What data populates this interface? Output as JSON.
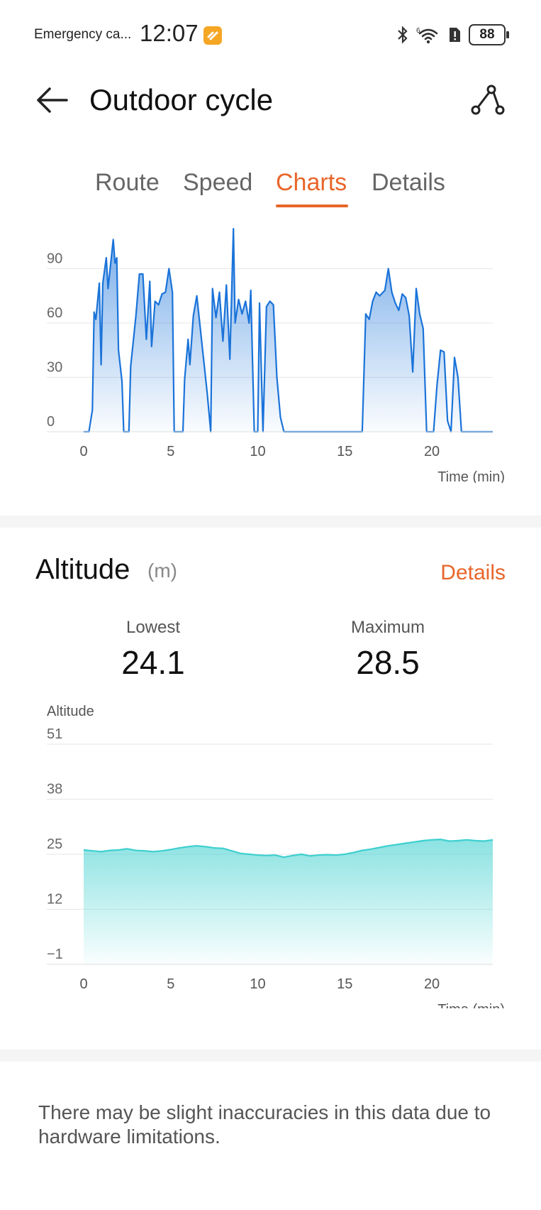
{
  "status_bar": {
    "carrier": "Emergency ca...",
    "time": "12:07",
    "battery": "88"
  },
  "header": {
    "title": "Outdoor cycle"
  },
  "tabs": [
    {
      "label": "Route",
      "active": false
    },
    {
      "label": "Speed",
      "active": false
    },
    {
      "label": "Charts",
      "active": true
    },
    {
      "label": "Details",
      "active": false
    }
  ],
  "altitude_section": {
    "title": "Altitude",
    "unit": "(m)",
    "details_label": "Details",
    "lowest_label": "Lowest",
    "lowest_value": "24.1",
    "maximum_label": "Maximum",
    "maximum_value": "28.5"
  },
  "footnote": "There may be slight inaccuracies in this data due to hardware limitations.",
  "colors": {
    "accent": "#e8652a",
    "chart1_line": "#1a73d9",
    "chart2_line": "#3ecfcf"
  },
  "chart_data": [
    {
      "type": "area",
      "title": "",
      "xlabel": "Time (min)",
      "ylabel": "",
      "xlim": [
        0,
        23.5
      ],
      "ylim": [
        0,
        105
      ],
      "x_ticks": [
        0,
        5,
        10,
        15,
        20
      ],
      "y_ticks": [
        0,
        30,
        60,
        90
      ],
      "grid": true,
      "x": [
        0,
        0.3,
        0.5,
        0.6,
        0.7,
        0.9,
        1.0,
        1.1,
        1.3,
        1.4,
        1.5,
        1.7,
        1.8,
        1.9,
        2.0,
        2.2,
        2.3,
        2.4,
        2.6,
        2.7,
        3.0,
        3.2,
        3.4,
        3.6,
        3.8,
        3.9,
        4.1,
        4.3,
        4.5,
        4.7,
        4.9,
        5.1,
        5.2,
        5.4,
        5.5,
        5.7,
        5.8,
        6.0,
        6.1,
        6.3,
        6.5,
        7.1,
        7.3,
        7.4,
        7.6,
        7.8,
        8.0,
        8.2,
        8.4,
        8.6,
        8.7,
        8.9,
        9.1,
        9.3,
        9.5,
        9.6,
        9.8,
        10.0,
        10.1,
        10.3,
        10.5,
        10.7,
        10.9,
        11.1,
        11.3,
        11.5,
        11.7,
        11.9,
        12.1,
        12.3,
        12.5,
        12.7,
        12.9,
        13.1,
        13.3,
        13.5,
        13.7,
        13.9,
        14.3,
        16.0,
        16.2,
        16.4,
        16.6,
        16.8,
        17.0,
        17.3,
        17.5,
        17.7,
        17.9,
        18.1,
        18.3,
        18.5,
        18.7,
        18.9,
        19.1,
        19.3,
        19.5,
        19.7,
        19.9,
        20.1,
        20.3,
        20.5,
        20.7,
        20.9,
        21.1,
        21.3,
        21.5,
        21.7,
        21.9,
        22.1,
        22.3,
        22.5,
        22.7,
        23.5
      ],
      "values": [
        0,
        0,
        12,
        66,
        62,
        82,
        37,
        82,
        96,
        79,
        88,
        106,
        93,
        96,
        45,
        28,
        0,
        0,
        0,
        36,
        64,
        87,
        87,
        51,
        83,
        47,
        72,
        70,
        76,
        77,
        90,
        77,
        0,
        0,
        0,
        0,
        29,
        51,
        37,
        64,
        75,
        21,
        0,
        79,
        63,
        77,
        50,
        81,
        40,
        112,
        60,
        73,
        65,
        72,
        60,
        78,
        0,
        0,
        71,
        0,
        69,
        72,
        70,
        30,
        8,
        0,
        0,
        0,
        0,
        0,
        0,
        0,
        0,
        0,
        0,
        0,
        0,
        0,
        0,
        0,
        65,
        62,
        72,
        77,
        75,
        78,
        90,
        77,
        71,
        67,
        76,
        74,
        64,
        33,
        79,
        65,
        57,
        0,
        0,
        0,
        26,
        45,
        44,
        6,
        0,
        41,
        30,
        0,
        0,
        0,
        0,
        0,
        0,
        0
      ]
    },
    {
      "type": "area",
      "title": "",
      "ylabel": "Altitude",
      "xlabel": "Time (min)",
      "xlim": [
        0,
        23.5
      ],
      "ylim": [
        -1,
        51
      ],
      "x_ticks": [
        0,
        5,
        10,
        15,
        20
      ],
      "y_ticks": [
        -1,
        12,
        25,
        38,
        51
      ],
      "grid": true,
      "x": [
        0,
        0.5,
        1.0,
        1.5,
        2.0,
        2.5,
        3.0,
        3.5,
        4.0,
        4.5,
        5.0,
        5.5,
        6.0,
        6.5,
        7.0,
        7.5,
        8.0,
        8.5,
        9.0,
        9.5,
        10.0,
        10.5,
        11.0,
        11.5,
        12.0,
        12.5,
        13.0,
        13.5,
        14.0,
        14.5,
        15.0,
        15.5,
        16.0,
        16.5,
        17.0,
        17.5,
        18.0,
        18.5,
        19.0,
        19.5,
        20.0,
        20.5,
        21.0,
        21.5,
        22.0,
        22.5,
        23.0,
        23.5
      ],
      "values": [
        26.0,
        25.8,
        25.6,
        25.9,
        26.0,
        26.3,
        25.9,
        25.8,
        25.6,
        25.8,
        26.1,
        26.5,
        26.8,
        27.0,
        26.8,
        26.5,
        26.4,
        25.8,
        25.2,
        25.0,
        24.8,
        24.7,
        24.8,
        24.3,
        24.7,
        25.0,
        24.6,
        24.8,
        24.9,
        24.8,
        25.0,
        25.4,
        25.9,
        26.2,
        26.6,
        27.0,
        27.3,
        27.6,
        27.9,
        28.2,
        28.4,
        28.5,
        28.1,
        28.2,
        28.4,
        28.2,
        28.1,
        28.4
      ]
    }
  ]
}
